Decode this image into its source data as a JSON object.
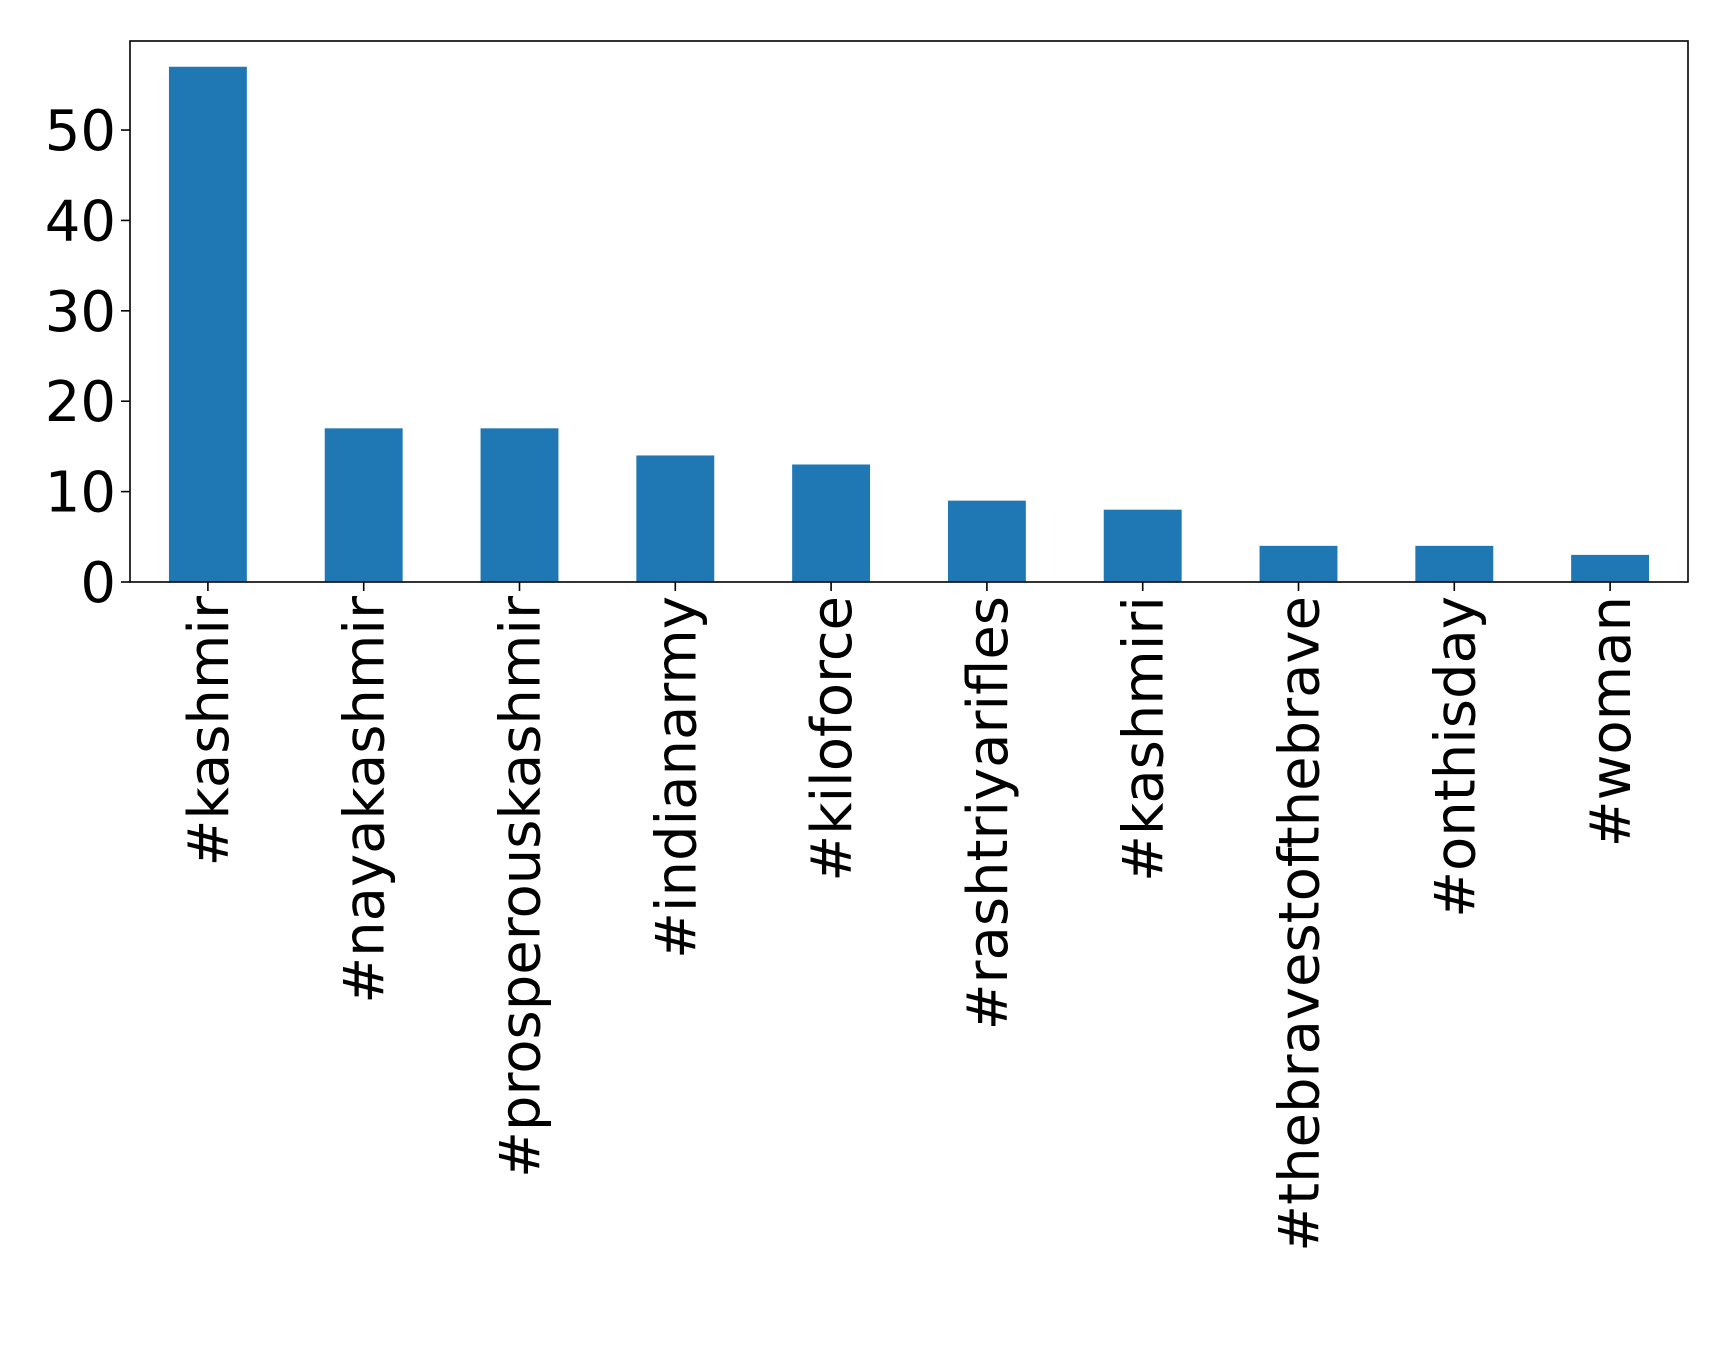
{
  "chart_data": {
    "type": "bar",
    "title": "",
    "xlabel": "",
    "ylabel": "",
    "categories": [
      "#kashmir",
      "#nayakashmir",
      "#prosperouskashmir",
      "#indianarmy",
      "#kiloforce",
      "#rashtriyarifles",
      "#kashmiri",
      "#thebravestofthebrave",
      "#onthisday",
      "#woman"
    ],
    "values": [
      57,
      17,
      17,
      14,
      13,
      9,
      8,
      4,
      4,
      3
    ],
    "ylim": [
      0,
      59.85
    ],
    "yticks": [
      0,
      10,
      20,
      30,
      40,
      50
    ],
    "grid": false,
    "legend": "none",
    "bar_color": "#1f77b4"
  }
}
